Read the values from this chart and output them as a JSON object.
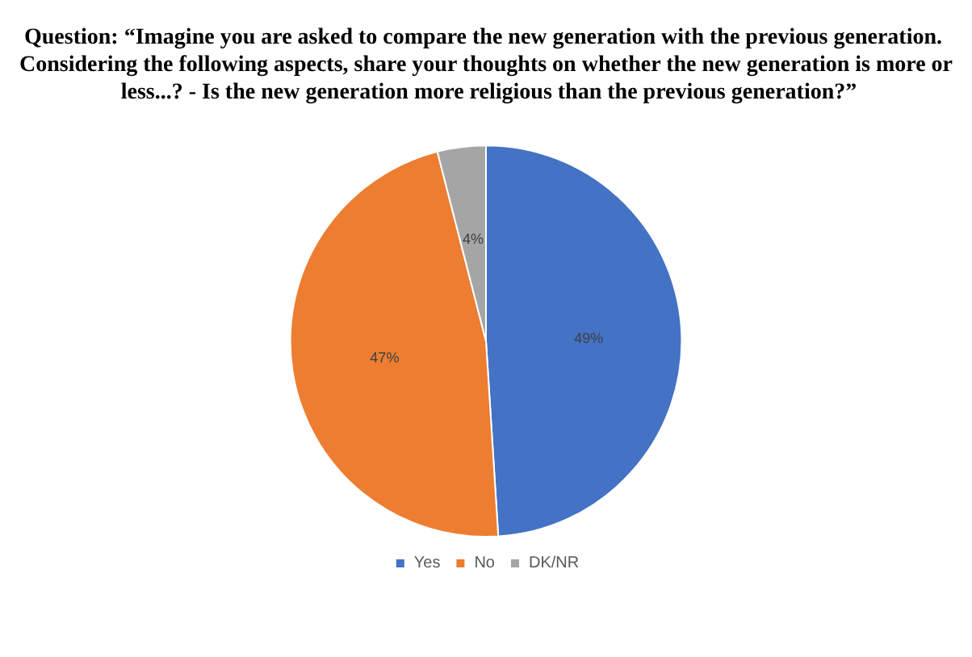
{
  "chart_data": {
    "type": "pie",
    "title": "Question: “Imagine you are asked to compare the new generation with the previous generation. Considering the following aspects, share your thoughts on whether the new generation is more or less...? - Is the new generation more religious than the previous generation?”",
    "categories": [
      "Yes",
      "No",
      "DK/NR"
    ],
    "values": [
      49,
      47,
      4
    ],
    "colors": [
      "#4472c4",
      "#ed7d31",
      "#a5a5a5"
    ],
    "value_labels": [
      "49%",
      "47%",
      "4%"
    ],
    "legend": "bottom"
  }
}
